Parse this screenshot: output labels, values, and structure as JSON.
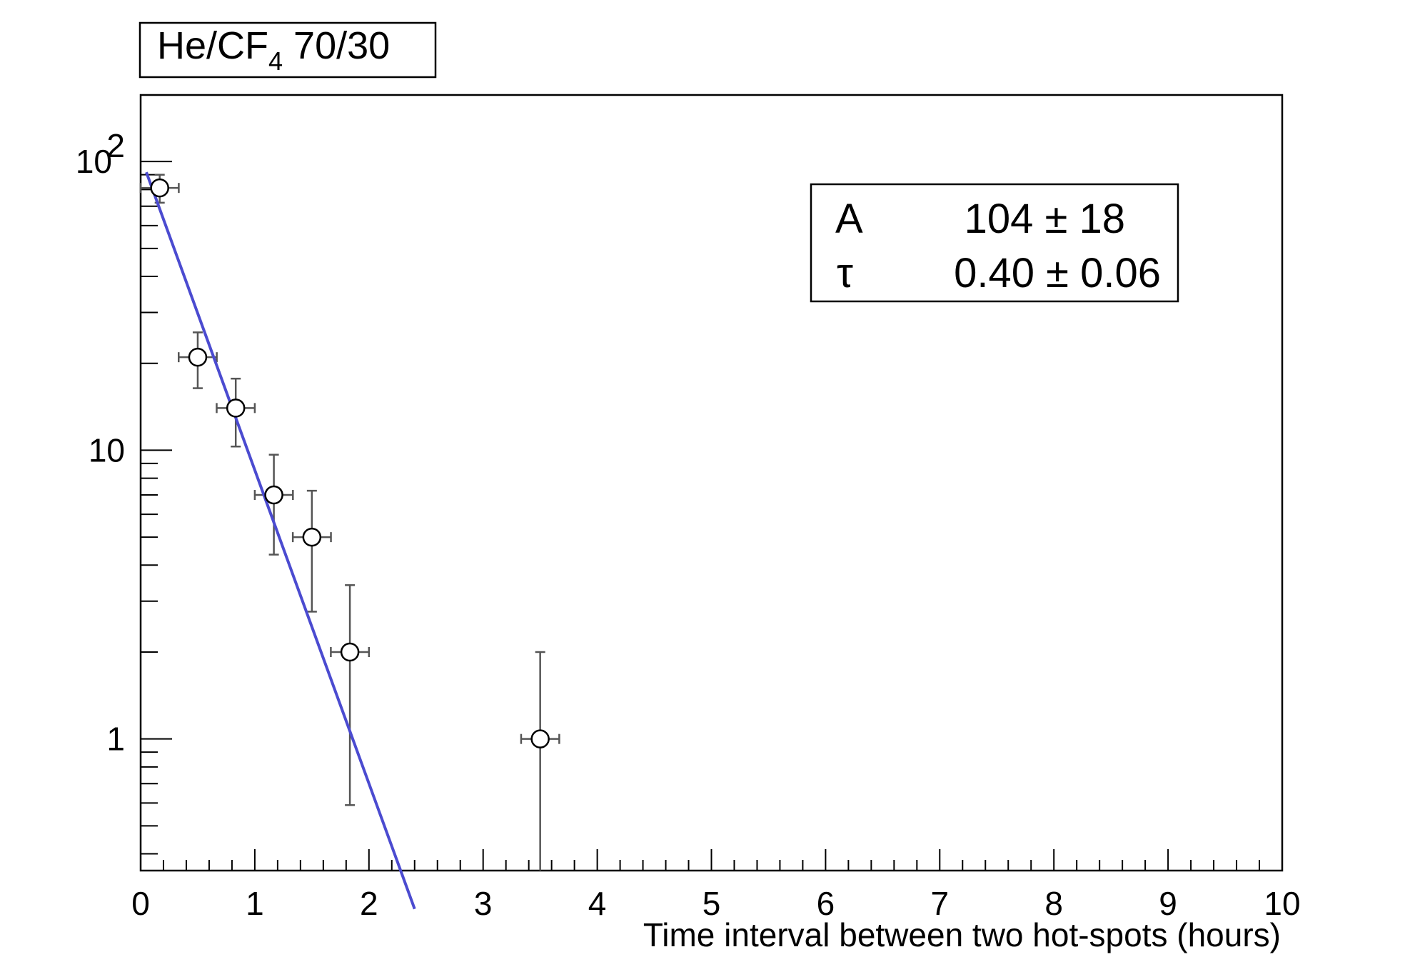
{
  "chart_data": {
    "type": "scatter",
    "title": {
      "main": "He/CF",
      "subscript": "4",
      "suffix": " 70/30"
    },
    "xlabel": "Time interval between two hot-spots (hours)",
    "ylabel": "",
    "xlim": [
      0,
      10
    ],
    "ylim": [
      0.35,
      170
    ],
    "yscale": "log",
    "grid": false,
    "x_ticks": [
      "0",
      "1",
      "2",
      "3",
      "4",
      "5",
      "6",
      "7",
      "8",
      "9",
      "10"
    ],
    "y_ticks": [
      {
        "value": 1,
        "label": "1"
      },
      {
        "value": 10,
        "label": "10"
      },
      {
        "value": 100,
        "label": "10",
        "exp": "2"
      }
    ],
    "series": [
      {
        "type": "points-with-errors",
        "color": "#000000",
        "error_color": "#555555",
        "points": [
          {
            "x": 0.167,
            "y": 81,
            "xerr": 0.167,
            "yerr_low": 9,
            "yerr_high": 9
          },
          {
            "x": 0.5,
            "y": 21,
            "xerr": 0.167,
            "yerr_low": 4.6,
            "yerr_high": 4.6
          },
          {
            "x": 0.833,
            "y": 14,
            "xerr": 0.167,
            "yerr_low": 3.7,
            "yerr_high": 3.7
          },
          {
            "x": 1.167,
            "y": 7,
            "xerr": 0.167,
            "yerr_low": 2.65,
            "yerr_high": 2.65
          },
          {
            "x": 1.5,
            "y": 5,
            "xerr": 0.167,
            "yerr_low": 2.24,
            "yerr_high": 2.24
          },
          {
            "x": 1.833,
            "y": 2,
            "xerr": 0.167,
            "yerr_low": 1.41,
            "yerr_high": 1.41
          },
          {
            "x": 3.5,
            "y": 1,
            "xerr": 0.167,
            "yerr_low": 1,
            "yerr_high": 1
          }
        ]
      },
      {
        "type": "fit-line",
        "color": "#4b4bd0",
        "function": "A*exp(-x/tau)",
        "A": 104,
        "tau": 0.4,
        "x_range": [
          0.05,
          2.4
        ]
      }
    ],
    "stats": [
      {
        "name": "A",
        "value": "104 ± 18"
      },
      {
        "name": "τ",
        "value": "0.40 ± 0.06"
      }
    ],
    "legend": "top-right"
  }
}
